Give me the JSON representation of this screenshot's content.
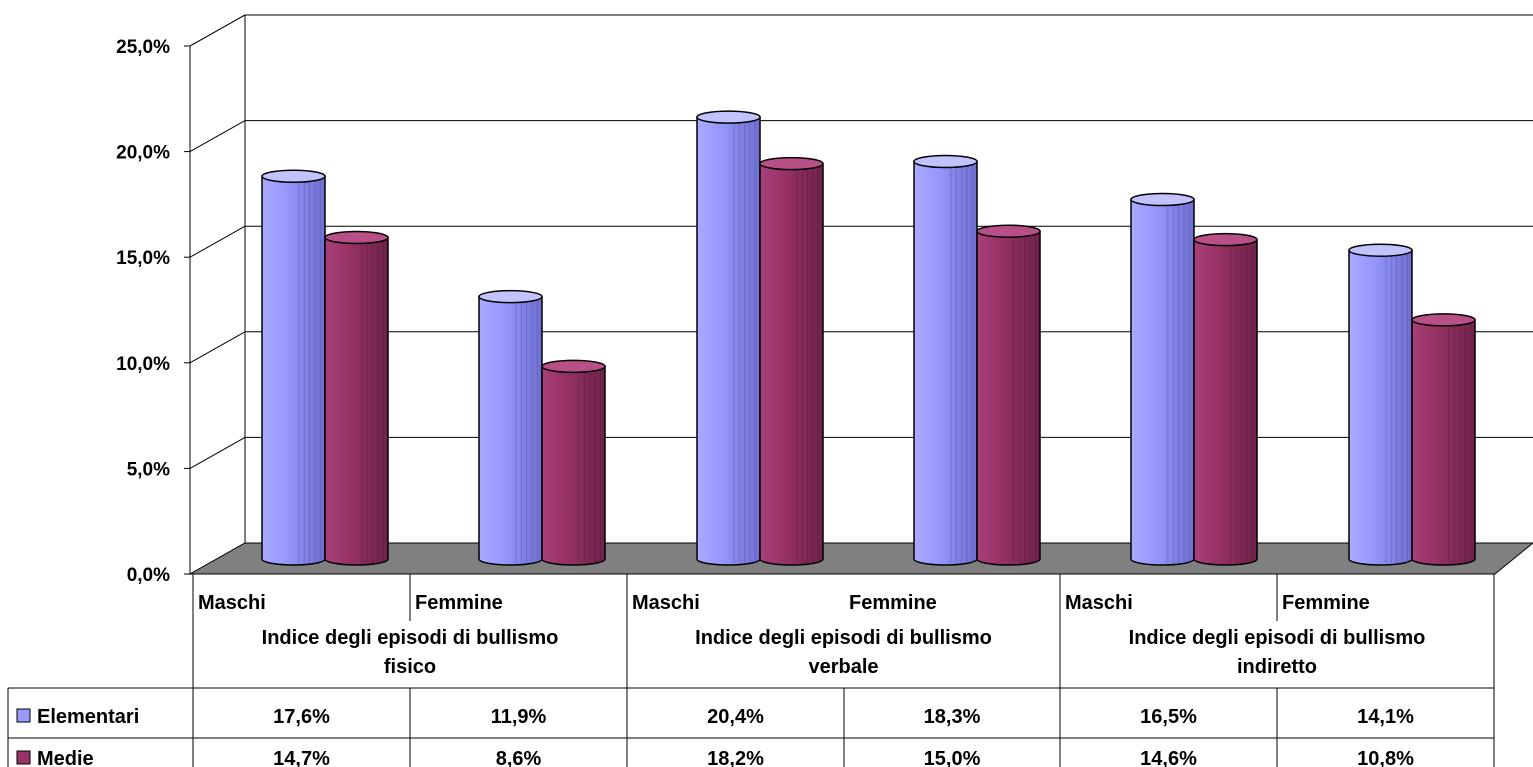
{
  "chart_data": {
    "type": "bar",
    "title": "",
    "xlabel": "",
    "ylabel": "",
    "ylim": [
      0,
      25
    ],
    "y_ticks": [
      "0,0%",
      "5,0%",
      "10,0%",
      "15,0%",
      "20,0%",
      "25,0%"
    ],
    "y_tick_values": [
      0,
      5,
      10,
      15,
      20,
      25
    ],
    "grid": true,
    "legend_placement": "data-table-left",
    "groups": [
      {
        "label": "Indice degli episodi di bullismo fisico",
        "lines": [
          "Indice degli episodi di bullismo",
          "fisico"
        ]
      },
      {
        "label": "Indice degli episodi di bullismo verbale",
        "lines": [
          "Indice degli episodi di bullismo",
          "verbale"
        ]
      },
      {
        "label": "Indice degli episodi di bullismo indiretto",
        "lines": [
          "Indice degli episodi di bullismo",
          "indiretto"
        ]
      }
    ],
    "categories": [
      "Maschi",
      "Femmine",
      "Maschi",
      "Femmine",
      "Maschi",
      "Femmine"
    ],
    "series": [
      {
        "name": "Elementari",
        "color": "#9999ff",
        "values": [
          17.6,
          11.9,
          20.4,
          18.3,
          16.5,
          14.1
        ],
        "labels": [
          "17,6%",
          "11,9%",
          "20,4%",
          "18,3%",
          "16,5%",
          "14,1%"
        ]
      },
      {
        "name": "Medie",
        "color": "#993366",
        "values": [
          14.7,
          8.6,
          18.2,
          15.0,
          14.6,
          10.8
        ],
        "labels": [
          "14,7%",
          "8,6%",
          "18,2%",
          "15,0%",
          "14,6%",
          "10,8%"
        ]
      }
    ]
  }
}
